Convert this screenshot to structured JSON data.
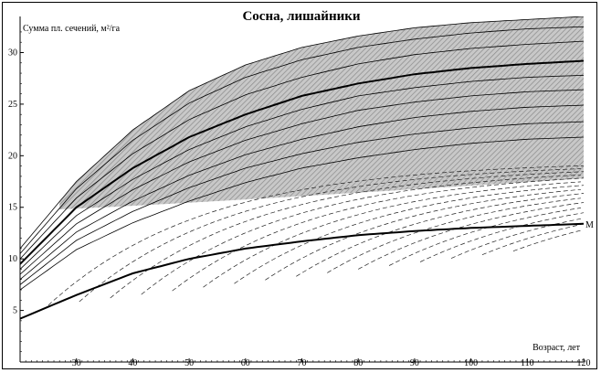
{
  "chart_data": {
    "type": "line",
    "title": "Сосна, лишайники",
    "ylabel": "Сумма пл. сечений, м²/га",
    "xlabel": "Возраст, лет",
    "xlim": [
      20,
      120
    ],
    "ylim": [
      0,
      33.5
    ],
    "x_ticks": [
      30,
      40,
      50,
      60,
      70,
      80,
      90,
      100,
      110,
      120
    ],
    "y_ticks": [
      5,
      10,
      15,
      20,
      25,
      30
    ],
    "x_tick_labels": [
      "30",
      "40",
      "50",
      "60",
      "70",
      "80",
      "90",
      "100",
      "110",
      "120"
    ],
    "y_tick_labels": [
      "5",
      "10",
      "15",
      "20",
      "25",
      "30"
    ],
    "grid": false,
    "series": [
      {
        "label": "",
        "style": "bold",
        "x": [
          20,
          30,
          40,
          50,
          60,
          70,
          80,
          90,
          100,
          110,
          120
        ],
        "values": [
          9.5,
          15.0,
          18.8,
          21.8,
          24.0,
          25.8,
          27.0,
          27.9,
          28.5,
          28.9,
          29.2
        ]
      },
      {
        "label": "M",
        "style": "bold",
        "x": [
          20,
          30,
          40,
          50,
          60,
          70,
          80,
          90,
          100,
          110,
          120
        ],
        "values": [
          4.2,
          6.5,
          8.6,
          10.0,
          11.0,
          11.7,
          12.3,
          12.7,
          13.0,
          13.2,
          13.4
        ]
      },
      {
        "label": "",
        "style": "thin",
        "x": [
          20,
          30,
          40,
          50,
          60,
          70,
          80,
          90,
          100,
          110,
          120
        ],
        "values": [
          11.0,
          17.5,
          22.5,
          26.3,
          28.8,
          30.5,
          31.6,
          32.4,
          32.9,
          33.2,
          33.5
        ]
      },
      {
        "label": "",
        "style": "thin",
        "x": [
          20,
          30,
          40,
          50,
          60,
          70,
          80,
          90,
          100,
          110,
          120
        ],
        "values": [
          10.5,
          16.8,
          21.5,
          25.1,
          27.6,
          29.3,
          30.5,
          31.3,
          31.9,
          32.3,
          32.5
        ]
      },
      {
        "label": "",
        "style": "thin",
        "x": [
          20,
          30,
          40,
          50,
          60,
          70,
          80,
          90,
          100,
          110,
          120
        ],
        "values": [
          10.0,
          15.9,
          20.2,
          23.5,
          25.9,
          27.6,
          28.9,
          29.8,
          30.4,
          30.8,
          31.1
        ]
      },
      {
        "label": "",
        "style": "thin",
        "x": [
          20,
          30,
          40,
          50,
          60,
          70,
          80,
          90,
          100,
          110,
          120
        ],
        "values": [
          9.0,
          14.2,
          17.7,
          20.6,
          22.8,
          24.5,
          25.8,
          26.6,
          27.2,
          27.6,
          27.8
        ]
      },
      {
        "label": "",
        "style": "thin",
        "x": [
          20,
          30,
          40,
          50,
          60,
          70,
          80,
          90,
          100,
          110,
          120
        ],
        "values": [
          8.5,
          13.4,
          16.7,
          19.4,
          21.5,
          23.1,
          24.4,
          25.2,
          25.8,
          26.2,
          26.4
        ]
      },
      {
        "label": "",
        "style": "thin",
        "x": [
          20,
          30,
          40,
          50,
          60,
          70,
          80,
          90,
          100,
          110,
          120
        ],
        "values": [
          8.0,
          12.6,
          15.6,
          18.1,
          20.1,
          21.6,
          22.8,
          23.7,
          24.3,
          24.7,
          24.9
        ]
      },
      {
        "label": "",
        "style": "thin",
        "x": [
          20,
          30,
          40,
          50,
          60,
          70,
          80,
          90,
          100,
          110,
          120
        ],
        "values": [
          7.5,
          11.8,
          14.6,
          16.9,
          18.8,
          20.2,
          21.3,
          22.1,
          22.7,
          23.1,
          23.3
        ]
      },
      {
        "label": "",
        "style": "thin",
        "x": [
          20,
          30,
          40,
          50,
          60,
          70,
          80,
          90,
          100,
          110,
          120
        ],
        "values": [
          7.0,
          10.9,
          13.5,
          15.6,
          17.4,
          18.8,
          19.8,
          20.6,
          21.2,
          21.6,
          21.8
        ]
      }
    ]
  }
}
